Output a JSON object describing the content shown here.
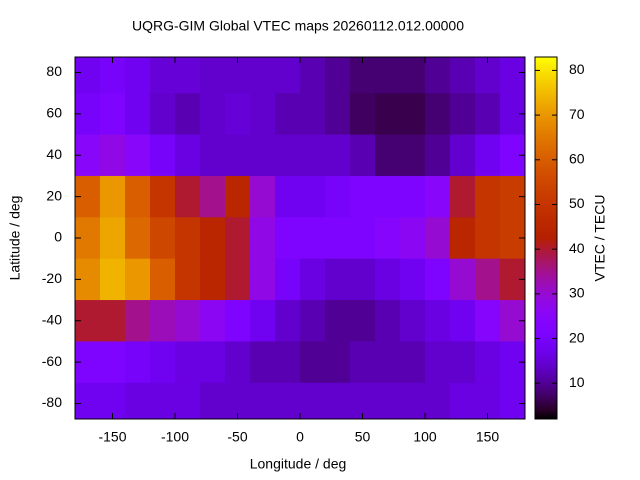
{
  "chart_data": {
    "type": "heatmap",
    "title": "UQRG-GIM Global VTEC maps 20260112.012.00000",
    "x_label": "Longitude / deg",
    "y_label": "Latitude / deg",
    "colorbar_label": "VTEC / TECU",
    "palette": "gnuplot-7-5-15",
    "x": [
      -170,
      -150,
      -130,
      -110,
      -90,
      -70,
      -50,
      -30,
      -10,
      10,
      30,
      50,
      70,
      90,
      110,
      130,
      150,
      170
    ],
    "y": [
      80,
      60,
      40,
      20,
      0,
      -20,
      -40,
      -60,
      -80
    ],
    "z": [
      [
        18,
        20,
        18,
        15,
        15,
        14,
        14,
        14,
        14,
        12,
        10,
        8,
        8,
        8,
        10,
        12,
        14,
        16
      ],
      [
        20,
        22,
        18,
        14,
        12,
        14,
        15,
        14,
        12,
        12,
        10,
        7,
        6,
        6,
        8,
        10,
        12,
        16
      ],
      [
        25,
        28,
        25,
        20,
        16,
        14,
        14,
        14,
        14,
        14,
        14,
        12,
        8,
        8,
        10,
        14,
        18,
        22
      ],
      [
        60,
        70,
        60,
        50,
        40,
        35,
        45,
        30,
        18,
        18,
        20,
        22,
        22,
        22,
        25,
        40,
        50,
        52
      ],
      [
        65,
        72,
        62,
        55,
        50,
        45,
        40,
        28,
        22,
        22,
        22,
        22,
        24,
        26,
        30,
        45,
        50,
        52
      ],
      [
        68,
        74,
        70,
        60,
        50,
        45,
        40,
        28,
        20,
        16,
        14,
        14,
        16,
        18,
        22,
        30,
        35,
        40
      ],
      [
        40,
        40,
        35,
        32,
        30,
        26,
        22,
        18,
        14,
        12,
        10,
        10,
        12,
        14,
        16,
        18,
        24,
        30
      ],
      [
        22,
        22,
        20,
        18,
        16,
        16,
        14,
        12,
        12,
        10,
        10,
        12,
        12,
        12,
        14,
        14,
        16,
        18
      ],
      [
        18,
        18,
        16,
        16,
        16,
        14,
        14,
        14,
        14,
        14,
        14,
        14,
        14,
        14,
        14,
        16,
        16,
        18
      ]
    ],
    "xlim": [
      -180,
      180
    ],
    "ylim": [
      -87.5,
      87.5
    ],
    "xticks": [
      -150,
      -100,
      -50,
      0,
      50,
      100,
      150
    ],
    "yticks": [
      -80,
      -60,
      -40,
      -20,
      0,
      20,
      40,
      60,
      80
    ],
    "cblim": [
      2,
      83
    ],
    "cbticks": [
      10,
      20,
      30,
      40,
      50,
      60,
      70,
      80
    ]
  }
}
